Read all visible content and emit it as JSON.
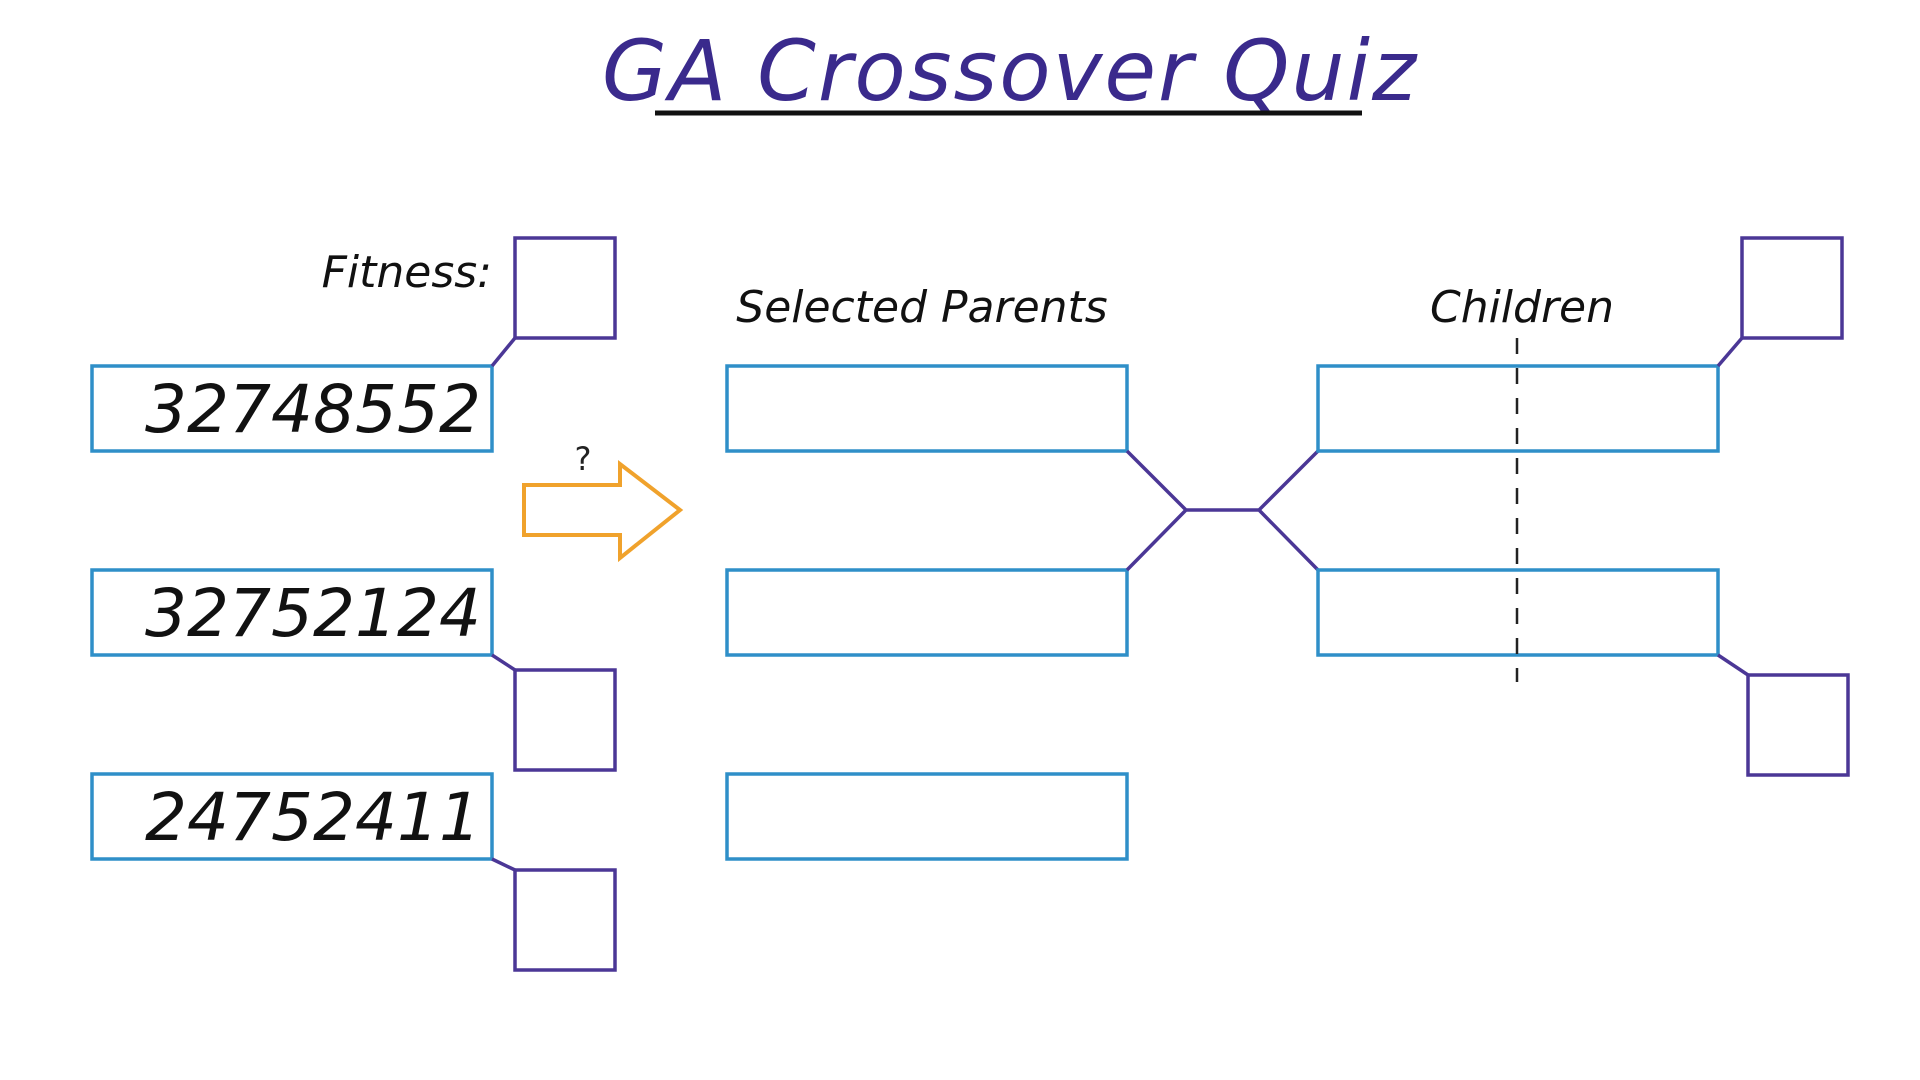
{
  "title": "GA Crossover Quiz",
  "labels": {
    "fitness": "Fitness:",
    "selected_parents": "Selected Parents",
    "children": "Children",
    "selection_question": "?"
  },
  "population": [
    {
      "chromosome": "32748552",
      "fitness": ""
    },
    {
      "chromosome": "32752124",
      "fitness": ""
    },
    {
      "chromosome": "24752411",
      "fitness": ""
    }
  ],
  "selected_parents": [
    "",
    "",
    ""
  ],
  "children": [
    {
      "chromosome": "",
      "fitness": ""
    },
    {
      "chromosome": "",
      "fitness": ""
    }
  ],
  "colors": {
    "title": "#3a2a8c",
    "slot_border": "#2f8fc8",
    "fitness_box_border": "#4b3796",
    "connector": "#4b3796",
    "arrow": "#f0a22c",
    "text": "#111111"
  },
  "icons": {
    "selection_arrow": "right-arrow-icon"
  }
}
